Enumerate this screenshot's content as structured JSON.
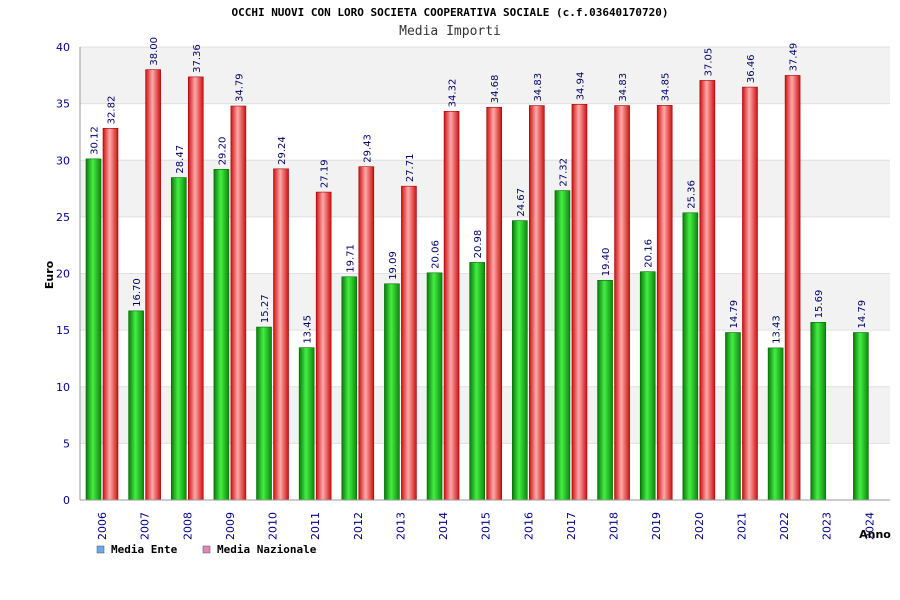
{
  "chart_data": {
    "type": "bar",
    "title": "OCCHI NUOVI CON LORO SOCIETA COOPERATIVA SOCIALE (c.f.03640170720)",
    "subtitle": "Media Importi",
    "xlabel": "Anno",
    "ylabel": "Euro",
    "ylim": [
      0,
      40
    ],
    "yticks": [
      0,
      5,
      10,
      15,
      20,
      25,
      30,
      35,
      40
    ],
    "grid": "horizontal-bands",
    "legend_position": "bottom-left",
    "categories": [
      "2006",
      "2007",
      "2008",
      "2009",
      "2010",
      "2011",
      "2012",
      "2013",
      "2014",
      "2015",
      "2016",
      "2017",
      "2018",
      "2019",
      "2020",
      "2021",
      "2022",
      "2023",
      "2024"
    ],
    "series": [
      {
        "name": "Media Ente",
        "color": "#11aa11",
        "legend_color": "#66aaee",
        "values": [
          30.12,
          16.7,
          28.47,
          29.2,
          15.27,
          13.45,
          19.71,
          19.09,
          20.06,
          20.98,
          24.67,
          27.32,
          19.4,
          20.16,
          25.36,
          14.79,
          13.43,
          15.69,
          14.79
        ],
        "labels": [
          "30.12",
          "16.70",
          "28.47",
          "29.20",
          "15.27",
          "13.45",
          "19.71",
          "19.09",
          "20.06",
          "20.98",
          "24.67",
          "27.32",
          "19.40",
          "20.16",
          "25.36",
          "14.79",
          "13.43",
          "15.69",
          "14.79"
        ]
      },
      {
        "name": "Media Nazionale",
        "color": "#ee2222",
        "legend_color": "#dd88bb",
        "values": [
          32.82,
          38.0,
          37.36,
          34.79,
          29.24,
          27.19,
          29.43,
          27.71,
          34.32,
          34.68,
          34.83,
          34.94,
          34.83,
          34.85,
          37.05,
          36.46,
          37.49,
          null,
          null
        ],
        "labels": [
          "32.82",
          "38.00",
          "37.36",
          "34.79",
          "29.24",
          "27.19",
          "29.43",
          "27.71",
          "34.32",
          "34.68",
          "34.83",
          "34.94",
          "34.83",
          "34.85",
          "37.05",
          "36.46",
          "37.49",
          null,
          null
        ]
      }
    ]
  }
}
